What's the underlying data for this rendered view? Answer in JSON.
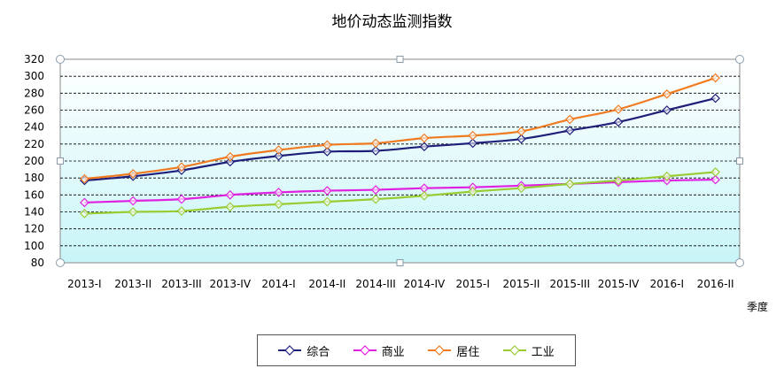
{
  "chart_data": {
    "type": "line",
    "title": "地价动态监测指数",
    "xlabel": "季度",
    "ylabel": "",
    "ylim": [
      80,
      320
    ],
    "yticks": [
      80,
      100,
      120,
      140,
      160,
      180,
      200,
      220,
      240,
      260,
      280,
      300,
      320
    ],
    "grid": "horizontal dashed",
    "legend_position": "bottom",
    "categories": [
      "2013-I",
      "2013-II",
      "2013-III",
      "2013-IV",
      "2014-I",
      "2014-II",
      "2014-III",
      "2014-IV",
      "2015-I",
      "2015-II",
      "2015-III",
      "2015-IV",
      "2016-I",
      "2016-II"
    ],
    "series": [
      {
        "name": "综合",
        "color": "#1f1f7a",
        "values": [
          177,
          182,
          189,
          199,
          206,
          211,
          212,
          217,
          221,
          226,
          236,
          246,
          260,
          274
        ]
      },
      {
        "name": "商业",
        "color": "#e020e0",
        "values": [
          151,
          153,
          155,
          160,
          163,
          165,
          166,
          168,
          169,
          171,
          173,
          175,
          177,
          178
        ]
      },
      {
        "name": "居住",
        "color": "#f07a20",
        "values": [
          179,
          185,
          193,
          205,
          213,
          219,
          221,
          227,
          230,
          235,
          249,
          261,
          279,
          298
        ]
      },
      {
        "name": "工业",
        "color": "#99cc33",
        "values": [
          138,
          140,
          141,
          146,
          149,
          152,
          155,
          159,
          164,
          168,
          173,
          177,
          182,
          187
        ]
      }
    ]
  }
}
